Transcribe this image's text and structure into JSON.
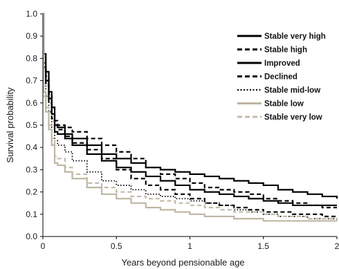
{
  "chart_data": {
    "type": "line",
    "title": "",
    "xlabel": "Years beyond pensionable age",
    "ylabel": "Survival probability",
    "xlim": [
      0,
      2
    ],
    "ylim": [
      0,
      1
    ],
    "x_ticks": [
      "0",
      "0.5",
      "1",
      "1.5",
      "2"
    ],
    "y_ticks": [
      "0.0",
      "0.1",
      "0.2",
      "0.3",
      "0.4",
      "0.5",
      "0.6",
      "0.7",
      "0.8",
      "0.9",
      "1.0"
    ],
    "legend_position": "top-right",
    "grid": false,
    "series": [
      {
        "name": "Stable very high",
        "color": "#000000",
        "dash": "solid",
        "points": [
          [
            0,
            1.0
          ],
          [
            0.005,
            0.82
          ],
          [
            0.02,
            0.74
          ],
          [
            0.04,
            0.65
          ],
          [
            0.06,
            0.58
          ],
          [
            0.08,
            0.5
          ],
          [
            0.1,
            0.49
          ],
          [
            0.15,
            0.46
          ],
          [
            0.2,
            0.44
          ],
          [
            0.3,
            0.41
          ],
          [
            0.4,
            0.37
          ],
          [
            0.5,
            0.35
          ],
          [
            0.6,
            0.33
          ],
          [
            0.7,
            0.31
          ],
          [
            0.8,
            0.3
          ],
          [
            0.9,
            0.29
          ],
          [
            1.0,
            0.28
          ],
          [
            1.1,
            0.27
          ],
          [
            1.2,
            0.26
          ],
          [
            1.3,
            0.25
          ],
          [
            1.4,
            0.24
          ],
          [
            1.5,
            0.23
          ],
          [
            1.6,
            0.21
          ],
          [
            1.7,
            0.2
          ],
          [
            1.8,
            0.19
          ],
          [
            1.9,
            0.18
          ],
          [
            2.0,
            0.17
          ]
        ]
      },
      {
        "name": "Stable high",
        "color": "#000000",
        "dash": "dashed",
        "points": [
          [
            0,
            1.0
          ],
          [
            0.005,
            0.78
          ],
          [
            0.02,
            0.72
          ],
          [
            0.04,
            0.64
          ],
          [
            0.06,
            0.58
          ],
          [
            0.08,
            0.52
          ],
          [
            0.1,
            0.5
          ],
          [
            0.15,
            0.49
          ],
          [
            0.2,
            0.47
          ],
          [
            0.3,
            0.44
          ],
          [
            0.4,
            0.41
          ],
          [
            0.5,
            0.38
          ],
          [
            0.6,
            0.35
          ],
          [
            0.7,
            0.31
          ],
          [
            0.8,
            0.28
          ],
          [
            0.9,
            0.26
          ],
          [
            1.0,
            0.24
          ],
          [
            1.1,
            0.22
          ],
          [
            1.2,
            0.21
          ],
          [
            1.3,
            0.2
          ],
          [
            1.4,
            0.19
          ],
          [
            1.5,
            0.17
          ],
          [
            1.6,
            0.16
          ],
          [
            1.7,
            0.15
          ],
          [
            1.8,
            0.14
          ],
          [
            1.9,
            0.13
          ],
          [
            2.0,
            0.13
          ]
        ]
      },
      {
        "name": "Improved",
        "color": "#000000",
        "dash": "solid",
        "points": [
          [
            0,
            1.0
          ],
          [
            0.005,
            0.76
          ],
          [
            0.02,
            0.7
          ],
          [
            0.04,
            0.62
          ],
          [
            0.06,
            0.55
          ],
          [
            0.08,
            0.47
          ],
          [
            0.1,
            0.46
          ],
          [
            0.15,
            0.44
          ],
          [
            0.2,
            0.41
          ],
          [
            0.3,
            0.37
          ],
          [
            0.4,
            0.34
          ],
          [
            0.5,
            0.31
          ],
          [
            0.6,
            0.29
          ],
          [
            0.7,
            0.27
          ],
          [
            0.8,
            0.25
          ],
          [
            0.9,
            0.23
          ],
          [
            1.0,
            0.21
          ],
          [
            1.1,
            0.2
          ],
          [
            1.2,
            0.19
          ],
          [
            1.3,
            0.18
          ],
          [
            1.4,
            0.17
          ],
          [
            1.5,
            0.16
          ],
          [
            1.6,
            0.15
          ],
          [
            1.7,
            0.14
          ],
          [
            1.8,
            0.14
          ],
          [
            1.9,
            0.14
          ],
          [
            2.0,
            0.14
          ]
        ]
      },
      {
        "name": "Declined",
        "color": "#000000",
        "dash": "dashed",
        "points": [
          [
            0,
            1.0
          ],
          [
            0.005,
            0.74
          ],
          [
            0.02,
            0.68
          ],
          [
            0.04,
            0.6
          ],
          [
            0.06,
            0.53
          ],
          [
            0.08,
            0.5
          ],
          [
            0.1,
            0.48
          ],
          [
            0.15,
            0.45
          ],
          [
            0.2,
            0.42
          ],
          [
            0.3,
            0.39
          ],
          [
            0.4,
            0.35
          ],
          [
            0.5,
            0.3
          ],
          [
            0.6,
            0.26
          ],
          [
            0.7,
            0.23
          ],
          [
            0.8,
            0.21
          ],
          [
            0.9,
            0.19
          ],
          [
            1.0,
            0.17
          ],
          [
            1.1,
            0.15
          ],
          [
            1.2,
            0.14
          ],
          [
            1.3,
            0.13
          ],
          [
            1.4,
            0.12
          ],
          [
            1.5,
            0.11
          ],
          [
            1.6,
            0.11
          ],
          [
            1.7,
            0.1
          ],
          [
            1.8,
            0.1
          ],
          [
            1.9,
            0.09
          ],
          [
            2.0,
            0.09
          ]
        ]
      },
      {
        "name": "Stable mid-low",
        "color": "#000000",
        "dash": "dotted",
        "points": [
          [
            0,
            1.0
          ],
          [
            0.005,
            0.7
          ],
          [
            0.02,
            0.63
          ],
          [
            0.04,
            0.56
          ],
          [
            0.06,
            0.49
          ],
          [
            0.08,
            0.43
          ],
          [
            0.1,
            0.41
          ],
          [
            0.15,
            0.38
          ],
          [
            0.2,
            0.34
          ],
          [
            0.3,
            0.29
          ],
          [
            0.4,
            0.25
          ],
          [
            0.5,
            0.23
          ],
          [
            0.6,
            0.21
          ],
          [
            0.7,
            0.19
          ],
          [
            0.8,
            0.18
          ],
          [
            0.9,
            0.17
          ],
          [
            1.0,
            0.16
          ],
          [
            1.1,
            0.15
          ],
          [
            1.2,
            0.14
          ],
          [
            1.3,
            0.12
          ],
          [
            1.4,
            0.11
          ],
          [
            1.5,
            0.1
          ],
          [
            1.6,
            0.09
          ],
          [
            1.7,
            0.09
          ],
          [
            1.8,
            0.08
          ],
          [
            1.9,
            0.08
          ],
          [
            2.0,
            0.08
          ]
        ]
      },
      {
        "name": "Stable low",
        "color": "#bdb6a2",
        "dash": "solid",
        "points": [
          [
            0,
            1.0
          ],
          [
            0.005,
            0.65
          ],
          [
            0.02,
            0.56
          ],
          [
            0.04,
            0.48
          ],
          [
            0.06,
            0.41
          ],
          [
            0.08,
            0.33
          ],
          [
            0.1,
            0.32
          ],
          [
            0.15,
            0.29
          ],
          [
            0.2,
            0.26
          ],
          [
            0.3,
            0.22
          ],
          [
            0.4,
            0.19
          ],
          [
            0.5,
            0.17
          ],
          [
            0.6,
            0.15
          ],
          [
            0.7,
            0.13
          ],
          [
            0.8,
            0.12
          ],
          [
            0.9,
            0.11
          ],
          [
            1.0,
            0.1
          ],
          [
            1.1,
            0.09
          ],
          [
            1.2,
            0.09
          ],
          [
            1.3,
            0.08
          ],
          [
            1.4,
            0.08
          ],
          [
            1.5,
            0.07
          ],
          [
            1.6,
            0.07
          ],
          [
            1.7,
            0.07
          ],
          [
            1.8,
            0.07
          ],
          [
            1.9,
            0.07
          ],
          [
            2.0,
            0.07
          ]
        ]
      },
      {
        "name": "Stable very low",
        "color": "#c2bba8",
        "dash": "dashed",
        "points": [
          [
            0,
            1.0
          ],
          [
            0.005,
            0.63
          ],
          [
            0.02,
            0.58
          ],
          [
            0.04,
            0.5
          ],
          [
            0.06,
            0.44
          ],
          [
            0.08,
            0.36
          ],
          [
            0.1,
            0.35
          ],
          [
            0.15,
            0.31
          ],
          [
            0.2,
            0.28
          ],
          [
            0.3,
            0.24
          ],
          [
            0.4,
            0.22
          ],
          [
            0.5,
            0.2
          ],
          [
            0.6,
            0.18
          ],
          [
            0.7,
            0.17
          ],
          [
            0.8,
            0.16
          ],
          [
            0.9,
            0.15
          ],
          [
            1.0,
            0.14
          ],
          [
            1.1,
            0.13
          ],
          [
            1.2,
            0.12
          ],
          [
            1.3,
            0.11
          ],
          [
            1.4,
            0.11
          ],
          [
            1.5,
            0.1
          ],
          [
            1.6,
            0.09
          ],
          [
            1.7,
            0.09
          ],
          [
            1.8,
            0.08
          ],
          [
            1.9,
            0.08
          ],
          [
            2.0,
            0.07
          ]
        ]
      }
    ]
  }
}
